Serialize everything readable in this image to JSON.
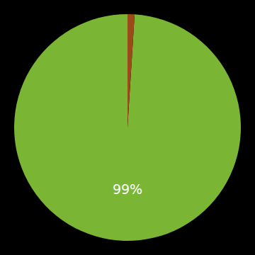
{
  "chart_data": {
    "type": "pie",
    "values": [
      99,
      1
    ],
    "colors": [
      "#7ab634",
      "#9b4b1a"
    ],
    "annotation": "99%"
  }
}
